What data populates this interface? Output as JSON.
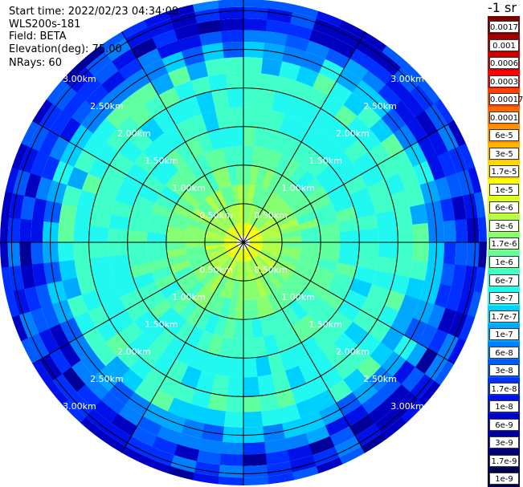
{
  "info": {
    "start_time": "Start time: 2022/02/23 04:34:09",
    "instrument": "WLS200s-181",
    "field": "Field: BETA",
    "elevation": "Elevation(deg): 75.00",
    "nrays": "NRays: 60"
  },
  "colorbar": {
    "title": "-1 sr",
    "labels": [
      "0.0017",
      "0.001",
      "0.0006",
      "0.0003",
      "0.00017",
      "0.0001",
      "6e-5",
      "3e-5",
      "1.7e-5",
      "1e-5",
      "6e-6",
      "3e-6",
      "1.7e-6",
      "1e-6",
      "6e-7",
      "3e-7",
      "1.7e-7",
      "1e-7",
      "6e-8",
      "3e-8",
      "1.7e-8",
      "1e-8",
      "6e-9",
      "3e-9",
      "1.7e-9",
      "1e-9"
    ],
    "colors": [
      "#7a0000",
      "#a80000",
      "#d00000",
      "#ff0000",
      "#ff4000",
      "#ff6a00",
      "#ff9000",
      "#ffb400",
      "#ffd800",
      "#ffff00",
      "#d8ff20",
      "#b0ff48",
      "#88ff70",
      "#60ffa0",
      "#40ffc8",
      "#20f8f0",
      "#00d0ff",
      "#00a8ff",
      "#0080ff",
      "#0058ff",
      "#0030ff",
      "#0010e8",
      "#0000c0",
      "#000098",
      "#000070",
      "#000048"
    ]
  },
  "chart_data": {
    "type": "heatmap",
    "projection": "polar",
    "field": "BETA",
    "elevation_deg": 75.0,
    "n_rays": 60,
    "range_ring_labels_km": [
      "0.50km",
      "1.00km",
      "1.50km",
      "2.00km",
      "2.50km",
      "3.00km"
    ],
    "range_rings_km": [
      0.5,
      1.0,
      1.5,
      2.0,
      2.5,
      3.0
    ],
    "max_range_km": 3.15,
    "radial_bands_km": [
      0.0,
      0.25,
      0.5,
      0.75,
      1.0,
      1.25,
      1.5,
      1.75,
      2.0,
      2.2,
      2.4,
      2.6,
      2.75,
      2.9,
      3.05,
      3.15
    ],
    "band_levels_log10": [
      -5.2,
      -5.6,
      -5.8,
      -6.0,
      -6.2,
      -6.3,
      -6.4,
      -6.45,
      -6.3,
      -6.55,
      -7.1,
      -7.6,
      -7.9,
      -7.7,
      -7.9
    ],
    "color_scale": "log",
    "color_range": [
      1e-09,
      0.0017
    ]
  }
}
